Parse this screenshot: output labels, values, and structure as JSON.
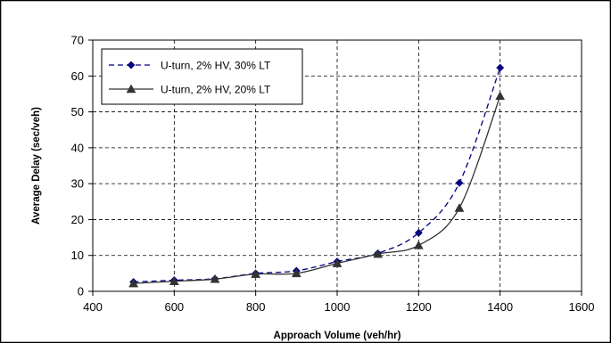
{
  "chart_data": {
    "type": "line",
    "title": "",
    "xlabel": "Approach Volume (veh/hr)",
    "ylabel": "Average Delay (sec/veh)",
    "xlim": [
      400,
      1600
    ],
    "ylim": [
      0,
      70
    ],
    "xticks": [
      400,
      600,
      800,
      1000,
      1200,
      1400,
      1600
    ],
    "yticks": [
      0,
      10,
      20,
      30,
      40,
      50,
      60,
      70
    ],
    "grid": true,
    "legend_position": "top-left",
    "series": [
      {
        "name": "U-turn, 2% HV, 30% LT",
        "color": "#000080",
        "line_style": "dashed",
        "marker": "diamond",
        "x": [
          500,
          600,
          700,
          800,
          900,
          1000,
          1100,
          1200,
          1300,
          1400
        ],
        "y": [
          2.6,
          3.1,
          3.5,
          5.0,
          5.7,
          8.3,
          10.6,
          16.3,
          30.2,
          62.3
        ]
      },
      {
        "name": "U-turn, 2% HV, 20% LT",
        "color": "#333333",
        "line_style": "solid",
        "marker": "triangle",
        "x": [
          500,
          600,
          700,
          800,
          900,
          1000,
          1100,
          1200,
          1300,
          1400
        ],
        "y": [
          2.2,
          2.8,
          3.4,
          4.8,
          5.0,
          7.8,
          10.4,
          12.8,
          23.2,
          54.4
        ]
      }
    ]
  }
}
